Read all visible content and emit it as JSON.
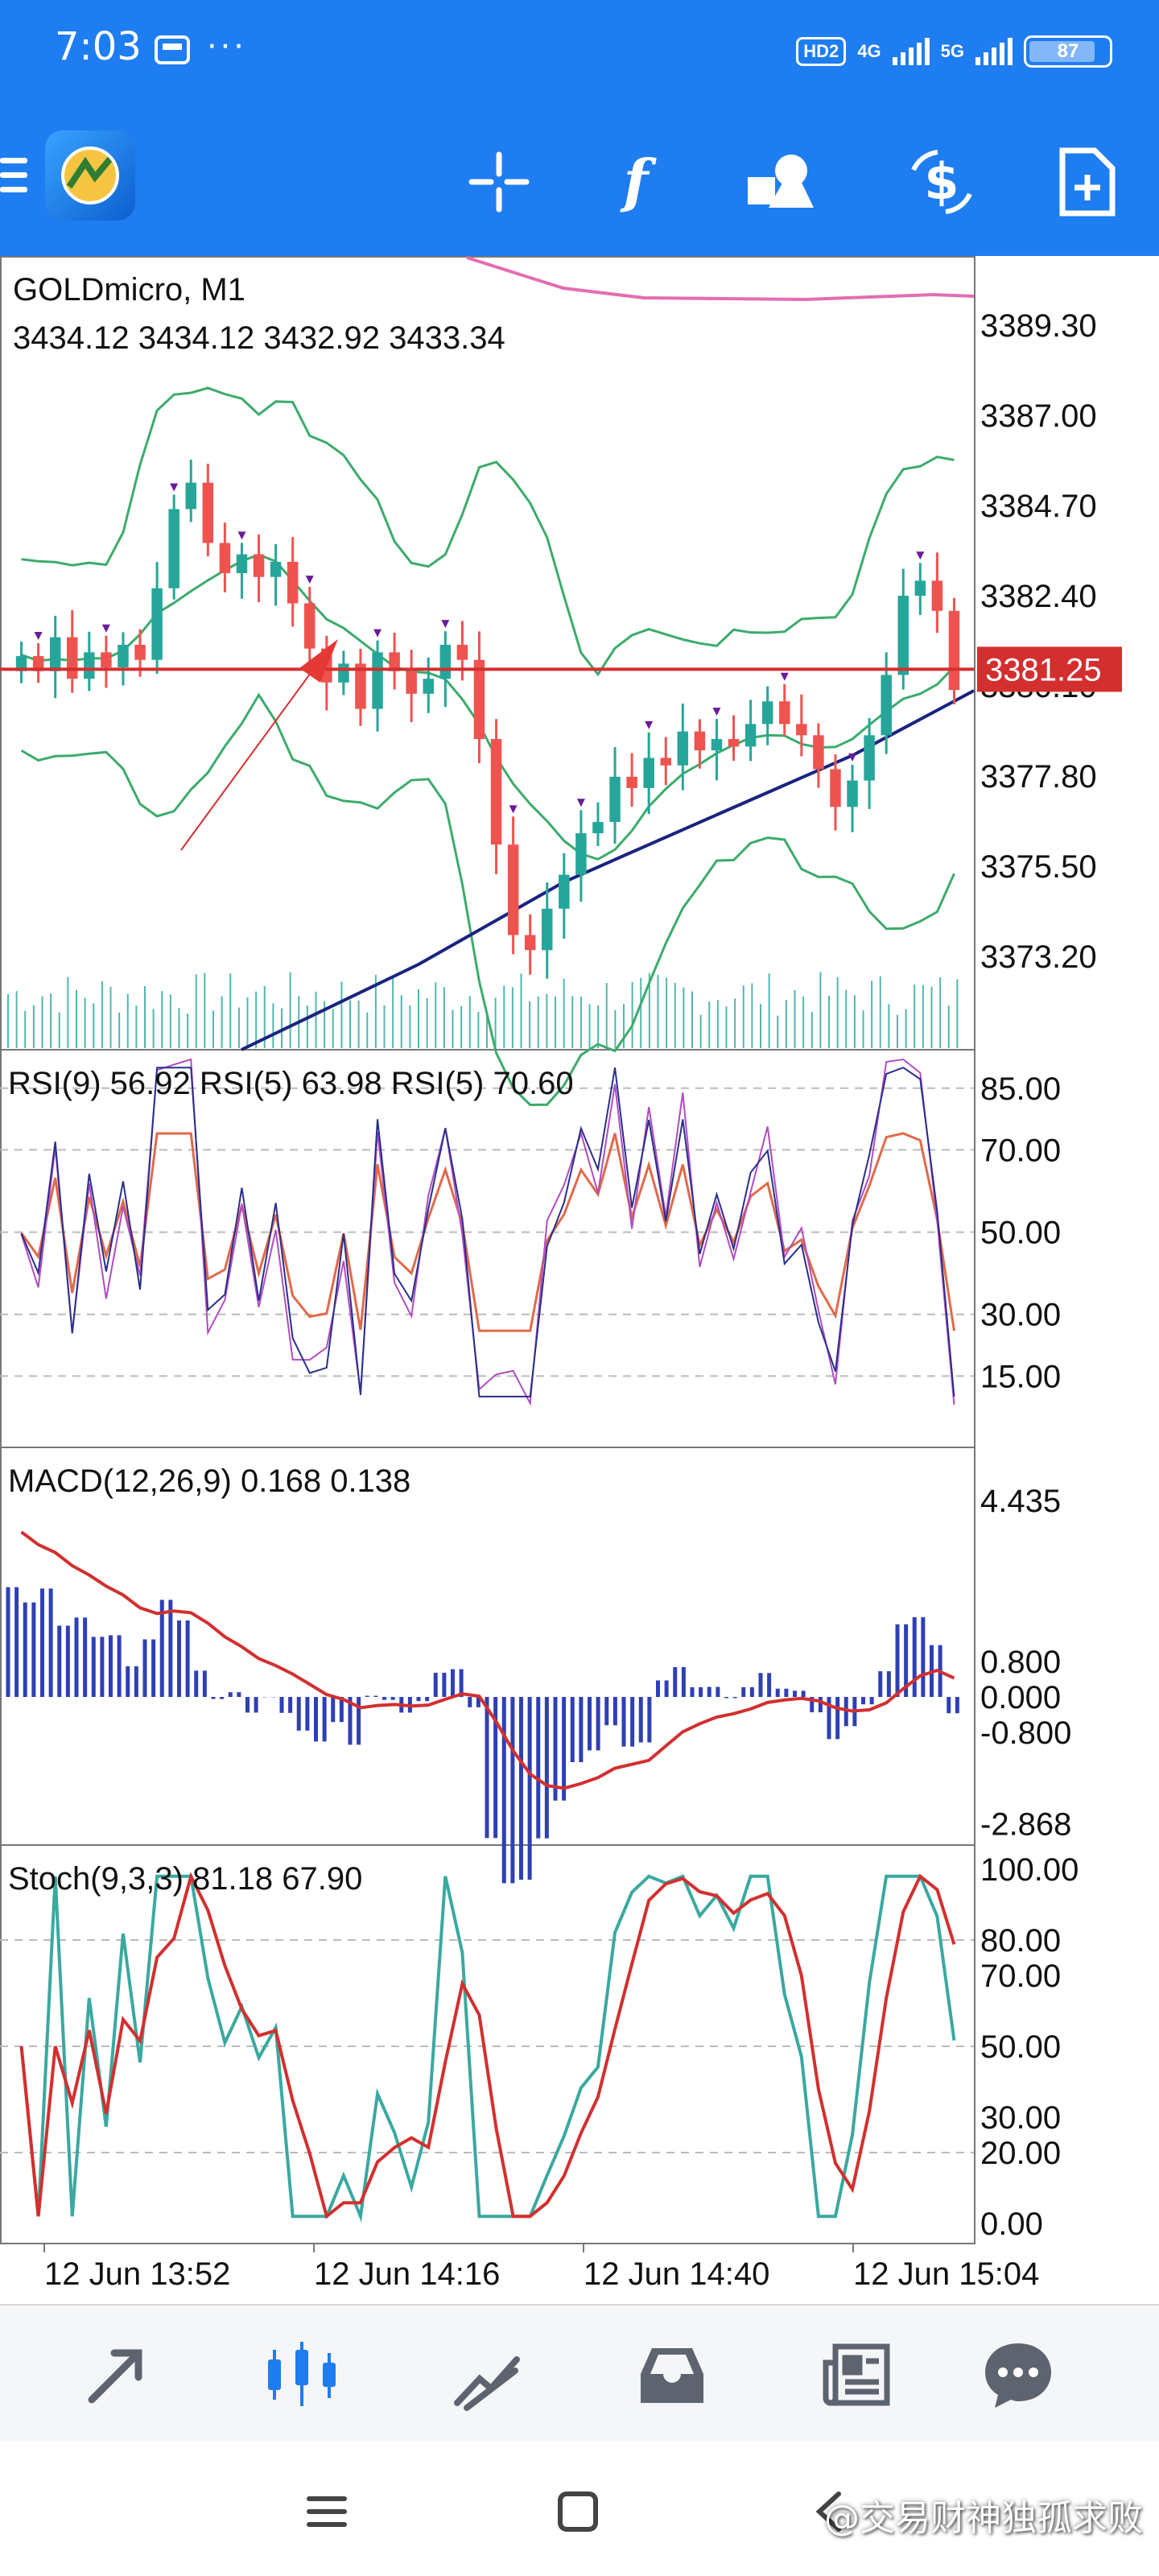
{
  "status_bar": {
    "time": "7:03",
    "more": "···",
    "hd_badge": "HD2",
    "net1": "4G",
    "net2": "5G",
    "battery": "87"
  },
  "toolbar": {
    "buttons": [
      "crosshair-icon",
      "indicators-icon",
      "objects-icon",
      "trade-icon",
      "new-order-icon"
    ]
  },
  "chart": {
    "symbol": "GOLDmicro, M1",
    "ohlc": "3434.12 3434.12 3432.92 3433.34",
    "price_ticks": [
      "3389.30",
      "3387.00",
      "3384.70",
      "3382.40",
      "3380.10",
      "3377.80",
      "3375.50",
      "3373.20"
    ],
    "current_price": "3381.25",
    "rsi_label": "RSI(9) 56.92 RSI(5) 63.98 RSI(5) 70.60",
    "rsi_ticks": [
      "85.00",
      "70.00",
      "50.00",
      "30.00",
      "15.00"
    ],
    "macd_label": "MACD(12,26,9) 0.168 0.138",
    "macd_ticks": [
      "4.435",
      "0.800",
      "0.000",
      "-0.800",
      "-2.868"
    ],
    "stoch_label": "Stoch(9,3,3) 81.18 67.90",
    "stoch_ticks": [
      "100.00",
      "80.00",
      "70.00",
      "50.00",
      "30.00",
      "20.00",
      "0.00"
    ],
    "time_ticks": [
      "12 Jun 13:52",
      "12 Jun 14:16",
      "12 Jun 14:40",
      "12 Jun 15:04"
    ],
    "colors": {
      "bull": "#26a69a",
      "bear": "#ef5350",
      "bands": "#3cab6a",
      "ma_long": "#1a237e",
      "ma_top": "#e26eb0",
      "price_line": "#d32f2f",
      "macd_hist": "#2f3fb5"
    }
  },
  "bottom_nav": {
    "items": [
      "quotes-icon",
      "chart-icon",
      "trade-icon",
      "history-icon",
      "news-icon",
      "chat-icon"
    ],
    "active": 1
  },
  "watermark": "@交易财神独孤求败"
}
